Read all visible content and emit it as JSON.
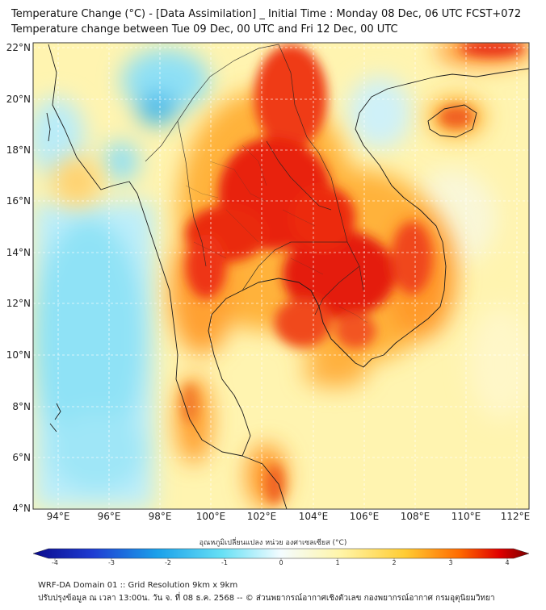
{
  "header": {
    "title_line1": "Temperature Change (°C) - [Data Assimilation] _ Initial Time : Monday 08 Dec, 06 UTC FCST+072",
    "title_line2": "Temperature change between Tue 09 Dec, 00 UTC and Fri 12 Dec, 00 UTC"
  },
  "map": {
    "lon_labels": [
      "94°E",
      "96°E",
      "98°E",
      "100°E",
      "102°E",
      "104°E",
      "106°E",
      "108°E",
      "110°E",
      "112°E"
    ],
    "lat_labels": [
      "22°N",
      "20°N",
      "18°N",
      "16°N",
      "14°N",
      "12°N",
      "10°N",
      "8°N",
      "6°N",
      "4°N"
    ],
    "background_color": "#fff4b0",
    "warm_color": "#e81c0c",
    "cool_color": "#5ed3f0"
  },
  "colorbar": {
    "title": "อุณหภูมิเปลี่ยนแปลง หน่วย องศาเซลเซียส (°C)",
    "tick_labels": [
      "-4",
      "-3",
      "-2",
      "-1",
      "0",
      "1",
      "2",
      "3",
      "4"
    ],
    "colors": [
      "#0a0a8c",
      "#1e3cd2",
      "#1aa0ea",
      "#66e0f5",
      "#ecfbff",
      "#fff5a8",
      "#ffcc33",
      "#ff6a00",
      "#e00000",
      "#7a0000"
    ]
  },
  "footer": {
    "line1": "WRF-DA Domain 01 :: Grid Resolution 9km x 9km",
    "line2": "ปรับปรุงข้อมูล ณ เวลา 13:00น. วัน จ. ที่ 08 ธ.ค. 2568 -- © ส่วนพยากรณ์อากาศเชิงตัวเลข กองพยากรณ์อากาศ กรมอุตุนิยมวิทยา"
  }
}
